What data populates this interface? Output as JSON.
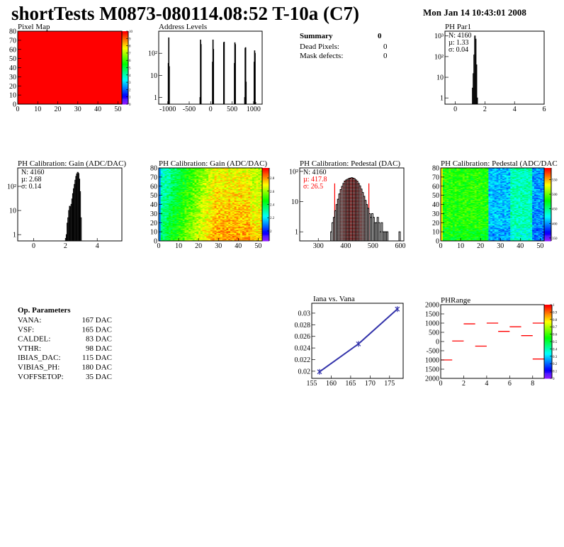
{
  "header": {
    "title": "shortTests M0873-080114.08:52 T-10a (C7)",
    "date": "Mon Jan 14 10:43:01 2008"
  },
  "summary": {
    "heading": "Summary",
    "heading_value": "0",
    "rows": [
      {
        "label": "Dead Pixels:",
        "value": "0"
      },
      {
        "label": "Mask defects:",
        "value": "0"
      }
    ]
  },
  "op_parameters": {
    "heading": "Op. Parameters",
    "rows": [
      {
        "label": "VANA:",
        "value": "167 DAC"
      },
      {
        "label": "VSF:",
        "value": "165 DAC"
      },
      {
        "label": "CALDEL:",
        "value": "83 DAC"
      },
      {
        "label": "VTHR:",
        "value": "98 DAC"
      },
      {
        "label": "IBIAS_DAC:",
        "value": "115 DAC"
      },
      {
        "label": "VIBIAS_PH:",
        "value": "180 DAC"
      },
      {
        "label": "VOFFSETOP:",
        "value": "35 DAC"
      }
    ]
  },
  "colors": {
    "histogram": "#000000",
    "fit": "#ff0000",
    "graph": "#3333aa",
    "phrange": "#ff0000"
  },
  "chart_data": [
    {
      "id": "pixelmap",
      "type": "heatmap",
      "title": "Pixel Map",
      "xlim": [
        0,
        52
      ],
      "ylim": [
        0,
        80
      ],
      "zlim": [
        0,
        10
      ],
      "xticks": [
        "0",
        "10",
        "20",
        "30",
        "40",
        "50"
      ],
      "yticks": [
        "0",
        "10",
        "20",
        "30",
        "40",
        "50",
        "60",
        "70",
        "80"
      ],
      "zticks": [
        "0",
        "1",
        "2",
        "3",
        "4",
        "5",
        "6",
        "7",
        "8",
        "9",
        "10"
      ],
      "uniform_value": 10
    },
    {
      "id": "address",
      "type": "bar",
      "title": "Address Levels",
      "xlim": [
        -1210,
        1200
      ],
      "ylim": [
        0.5,
        1000
      ],
      "ylog": true,
      "bin_width": 10,
      "xticks": [
        "-1000",
        "-500",
        "0",
        "500",
        "1000"
      ],
      "yticks": [
        "1",
        "10",
        "10²"
      ],
      "bins": [
        [
          -990,
          35
        ],
        [
          -980,
          500
        ],
        [
          -970,
          25
        ],
        [
          -250,
          1
        ],
        [
          -240,
          400
        ],
        [
          -230,
          250
        ],
        [
          40,
          40
        ],
        [
          50,
          400
        ],
        [
          60,
          150
        ],
        [
          300,
          300
        ],
        [
          310,
          320
        ],
        [
          550,
          35
        ],
        [
          560,
          300
        ],
        [
          570,
          250
        ],
        [
          790,
          1
        ],
        [
          800,
          170
        ],
        [
          810,
          180
        ],
        [
          820,
          5
        ],
        [
          1010,
          40
        ],
        [
          1020,
          130
        ],
        [
          1030,
          100
        ],
        [
          1040,
          0.6
        ]
      ]
    },
    {
      "id": "phpar1",
      "type": "bar",
      "title": "PH Par1",
      "xlim": [
        -0.7,
        6
      ],
      "ylim": [
        0.5,
        1700
      ],
      "ylog": true,
      "bin_width": 0.05,
      "xticks": [
        "0",
        "2",
        "4",
        "6"
      ],
      "yticks": [
        "1",
        "10",
        "10²",
        "10³"
      ],
      "stats": [
        "N: 4160",
        "µ: 1.33",
        "σ: 0.04"
      ],
      "bins": [
        [
          1.15,
          3
        ],
        [
          1.2,
          15
        ],
        [
          1.25,
          120
        ],
        [
          1.3,
          1000
        ],
        [
          1.35,
          700
        ],
        [
          1.4,
          40
        ],
        [
          1.45,
          1
        ]
      ]
    },
    {
      "id": "gainhist",
      "type": "bar",
      "title": "PH Calibration: Gain (ADC/DAC)",
      "xlim": [
        -1,
        5.55
      ],
      "ylim": [
        0.55,
        580
      ],
      "ylog": true,
      "bin_width": 0.05,
      "xticks": [
        "0",
        "2",
        "4"
      ],
      "yticks": [
        "1",
        "10",
        "10²"
      ],
      "stats": [
        "N: 4160",
        "µ: 2.68",
        "σ: 0.14"
      ],
      "bins": [
        [
          2.0,
          0.7
        ],
        [
          2.05,
          1
        ],
        [
          2.1,
          3
        ],
        [
          2.15,
          5
        ],
        [
          2.2,
          10
        ],
        [
          2.25,
          15
        ],
        [
          2.3,
          14
        ],
        [
          2.35,
          18
        ],
        [
          2.4,
          30
        ],
        [
          2.45,
          50
        ],
        [
          2.5,
          80
        ],
        [
          2.55,
          120
        ],
        [
          2.6,
          180
        ],
        [
          2.65,
          260
        ],
        [
          2.7,
          330
        ],
        [
          2.75,
          380
        ],
        [
          2.8,
          340
        ],
        [
          2.85,
          200
        ],
        [
          2.9,
          60
        ],
        [
          2.95,
          5
        ]
      ]
    },
    {
      "id": "gainmap",
      "type": "heatmap",
      "title": "PH Calibration: Gain (ADC/DAC)",
      "xlim": [
        0,
        52
      ],
      "ylim": [
        0,
        80
      ],
      "zlim": [
        1.85,
        2.95
      ],
      "xticks": [
        "0",
        "10",
        "20",
        "30",
        "40",
        "50"
      ],
      "yticks": [
        "0",
        "10",
        "20",
        "30",
        "40",
        "50",
        "60",
        "70",
        "80"
      ],
      "zticks": [
        "2",
        "2.2",
        "2.4",
        "2.6",
        "2.8"
      ]
    },
    {
      "id": "pedhist",
      "type": "bar",
      "title": "PH Calibration: Pedestal (DAC)",
      "xlim": [
        232,
        613
      ],
      "ylim": [
        0.5,
        130
      ],
      "ylog": true,
      "bin_width": 5,
      "xticks": [
        "300",
        "400",
        "500",
        "600"
      ],
      "yticks": [
        "1",
        "10",
        "10²"
      ],
      "stats": [
        "N: 4160",
        "µ: 417.8",
        "σ: 26.5"
      ],
      "fit": {
        "mean": 417.8,
        "sigma": 26.5,
        "range": [
          360,
          485
        ]
      },
      "bins": [
        [
          345,
          1
        ],
        [
          350,
          2
        ],
        [
          355,
          3
        ],
        [
          360,
          5
        ],
        [
          365,
          8
        ],
        [
          370,
          12
        ],
        [
          375,
          18
        ],
        [
          380,
          25
        ],
        [
          385,
          32
        ],
        [
          390,
          40
        ],
        [
          395,
          48
        ],
        [
          400,
          52
        ],
        [
          405,
          55
        ],
        [
          410,
          58
        ],
        [
          415,
          60
        ],
        [
          420,
          62
        ],
        [
          425,
          60
        ],
        [
          430,
          57
        ],
        [
          435,
          52
        ],
        [
          440,
          47
        ],
        [
          445,
          40
        ],
        [
          450,
          33
        ],
        [
          455,
          26
        ],
        [
          460,
          20
        ],
        [
          465,
          15
        ],
        [
          470,
          11
        ],
        [
          475,
          8
        ],
        [
          480,
          6
        ],
        [
          485,
          4
        ],
        [
          490,
          3
        ],
        [
          495,
          4
        ],
        [
          500,
          3
        ],
        [
          505,
          2
        ],
        [
          510,
          2
        ],
        [
          515,
          3
        ],
        [
          520,
          2
        ],
        [
          525,
          1
        ],
        [
          530,
          2
        ],
        [
          535,
          1
        ],
        [
          540,
          1
        ],
        [
          545,
          1
        ],
        [
          550,
          1
        ],
        [
          595,
          1
        ]
      ]
    },
    {
      "id": "pedmap",
      "type": "heatmap",
      "title": "PH Calibration: Pedestal (ADC/DAC",
      "xlim": [
        0,
        52
      ],
      "ylim": [
        0,
        80
      ],
      "zlim": [
        340,
        590
      ],
      "xticks": [
        "0",
        "10",
        "20",
        "30",
        "40",
        "50"
      ],
      "yticks": [
        "0",
        "10",
        "20",
        "30",
        "40",
        "50",
        "60",
        "70",
        "80"
      ],
      "zticks": [
        "350",
        "400",
        "450",
        "500",
        "550"
      ]
    },
    {
      "id": "iana",
      "type": "line",
      "title": "Iana vs. Vana",
      "xlim": [
        155,
        178.5
      ],
      "ylim": [
        0.01877,
        0.0317
      ],
      "xticks": [
        "155",
        "160",
        "165",
        "170",
        "175"
      ],
      "yticks": [
        "0.02",
        "0.022",
        "0.024",
        "0.026",
        "0.028",
        "0.03"
      ],
      "x": [
        157,
        167,
        177
      ],
      "y": [
        0.0199,
        0.0247,
        0.0307
      ]
    },
    {
      "id": "phrange",
      "type": "heatmap",
      "title": "PHRange",
      "xlim": [
        0,
        9
      ],
      "ylim": [
        -2000,
        2000
      ],
      "zlim": [
        0,
        1
      ],
      "xticks": [
        "0",
        "2",
        "4",
        "6",
        "8"
      ],
      "yticks": [
        "2000",
        "1500",
        "1000",
        "500",
        "0",
        "-500",
        "1000",
        "1500",
        "2000"
      ],
      "zticks": [
        "0",
        "0.1",
        "0.2",
        "0.3",
        "0.4",
        "0.5",
        "0.6",
        "0.7",
        "0.8",
        "0.9",
        "1"
      ],
      "segments": [
        [
          0,
          -1000
        ],
        [
          1,
          30
        ],
        [
          2,
          960
        ],
        [
          3,
          -250
        ],
        [
          4,
          1000
        ],
        [
          5,
          550
        ],
        [
          6,
          800
        ],
        [
          7,
          320
        ],
        [
          8,
          1000
        ],
        [
          8,
          -950
        ]
      ]
    }
  ]
}
